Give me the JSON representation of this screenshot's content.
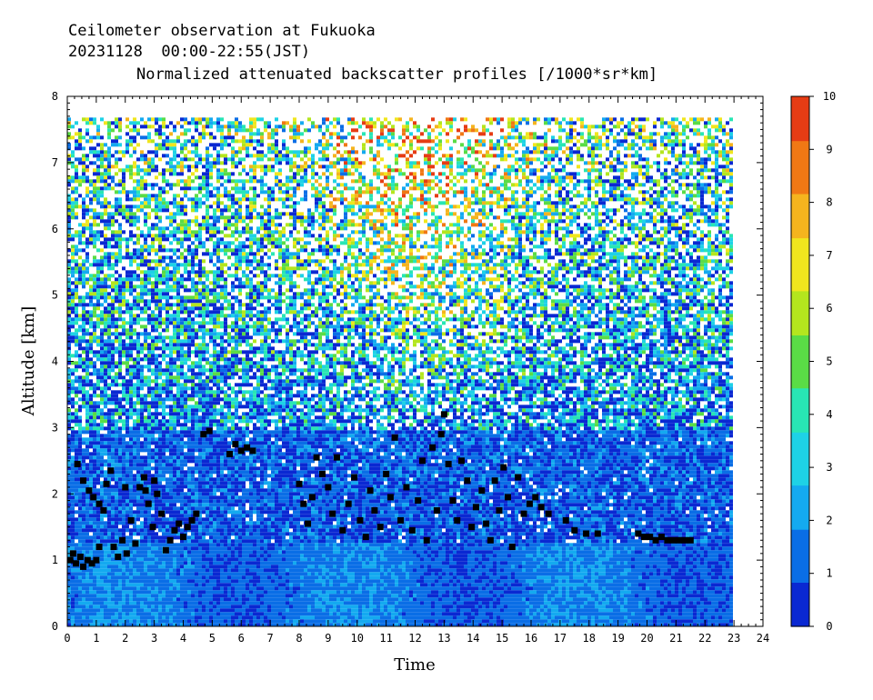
{
  "header": {
    "line1": "Ceilometer observation at Fukuoka",
    "line2": "20231128  00:00-22:55(JST)",
    "line3": "Normalized attenuated backscatter profiles [/1000*sr*km]"
  },
  "chart_data": {
    "type": "heatmap",
    "title": "Normalized attenuated backscatter profiles [/1000*sr*km]",
    "xlabel": "Time",
    "ylabel": "Altitude [km]",
    "xlim": [
      0,
      24
    ],
    "ylim": [
      0,
      8
    ],
    "data_x_range": [
      0,
      22.92
    ],
    "data_y_top": 7.68,
    "x_ticks": [
      "0",
      "1",
      "2",
      "3",
      "4",
      "5",
      "6",
      "7",
      "8",
      "9",
      "10",
      "11",
      "12",
      "13",
      "14",
      "15",
      "16",
      "17",
      "18",
      "19",
      "20",
      "21",
      "22",
      "23",
      "24"
    ],
    "y_ticks": [
      "0",
      "1",
      "2",
      "3",
      "4",
      "5",
      "6",
      "7",
      "8"
    ],
    "colorbar": {
      "min": 0,
      "max": 10,
      "ticks": [
        "0",
        "1",
        "2",
        "3",
        "4",
        "5",
        "6",
        "7",
        "8",
        "9",
        "10"
      ],
      "colors": [
        "#0a28d2",
        "#0a6ee6",
        "#14aaf0",
        "#1ed2e6",
        "#28e6b4",
        "#5adc46",
        "#b4e61e",
        "#f0e61e",
        "#f5b41e",
        "#f07814",
        "#e63c14"
      ]
    },
    "cloud_base_points": [
      [
        0.1,
        1.0
      ],
      [
        0.2,
        1.1
      ],
      [
        0.3,
        0.95
      ],
      [
        0.45,
        1.05
      ],
      [
        0.55,
        0.9
      ],
      [
        0.7,
        1.0
      ],
      [
        0.85,
        0.95
      ],
      [
        1.0,
        1.0
      ],
      [
        1.1,
        1.2
      ],
      [
        0.35,
        2.45
      ],
      [
        0.55,
        2.2
      ],
      [
        0.75,
        2.05
      ],
      [
        0.9,
        1.95
      ],
      [
        1.1,
        1.85
      ],
      [
        1.25,
        1.75
      ],
      [
        1.35,
        2.15
      ],
      [
        1.5,
        2.35
      ],
      [
        1.6,
        1.2
      ],
      [
        1.75,
        1.05
      ],
      [
        1.9,
        1.3
      ],
      [
        2.05,
        1.1
      ],
      [
        2.2,
        1.6
      ],
      [
        2.35,
        1.25
      ],
      [
        2.5,
        2.1
      ],
      [
        2.65,
        2.25
      ],
      [
        2.8,
        1.85
      ],
      [
        2.95,
        1.5
      ],
      [
        3.1,
        2.0
      ],
      [
        3.25,
        1.7
      ],
      [
        3.4,
        1.15
      ],
      [
        3.55,
        1.3
      ],
      [
        3.7,
        1.45
      ],
      [
        3.85,
        1.55
      ],
      [
        4.0,
        1.35
      ],
      [
        4.15,
        1.5
      ],
      [
        4.3,
        1.6
      ],
      [
        4.45,
        1.7
      ],
      [
        2.0,
        2.1
      ],
      [
        2.7,
        2.05
      ],
      [
        3.0,
        2.2
      ],
      [
        4.7,
        2.9
      ],
      [
        4.9,
        2.95
      ],
      [
        5.6,
        2.6
      ],
      [
        5.8,
        2.75
      ],
      [
        6.0,
        2.65
      ],
      [
        6.2,
        2.7
      ],
      [
        6.4,
        2.65
      ],
      [
        8.0,
        2.15
      ],
      [
        8.15,
        1.85
      ],
      [
        8.3,
        1.55
      ],
      [
        8.45,
        1.95
      ],
      [
        8.6,
        2.55
      ],
      [
        8.8,
        2.3
      ],
      [
        9.0,
        2.1
      ],
      [
        9.15,
        1.7
      ],
      [
        9.3,
        2.55
      ],
      [
        9.5,
        1.45
      ],
      [
        9.7,
        1.85
      ],
      [
        9.9,
        2.25
      ],
      [
        10.1,
        1.6
      ],
      [
        10.3,
        1.35
      ],
      [
        10.45,
        2.05
      ],
      [
        10.6,
        1.75
      ],
      [
        10.8,
        1.5
      ],
      [
        11.0,
        2.3
      ],
      [
        11.15,
        1.95
      ],
      [
        11.3,
        2.85
      ],
      [
        11.5,
        1.6
      ],
      [
        11.7,
        2.1
      ],
      [
        11.9,
        1.45
      ],
      [
        12.1,
        1.9
      ],
      [
        12.25,
        2.5
      ],
      [
        12.4,
        1.3
      ],
      [
        12.6,
        2.7
      ],
      [
        12.75,
        1.75
      ],
      [
        12.9,
        2.9
      ],
      [
        13.0,
        3.2
      ],
      [
        13.15,
        2.45
      ],
      [
        13.3,
        1.9
      ],
      [
        13.45,
        1.6
      ],
      [
        13.6,
        2.5
      ],
      [
        13.8,
        2.2
      ],
      [
        13.95,
        1.5
      ],
      [
        14.1,
        1.8
      ],
      [
        14.3,
        2.05
      ],
      [
        14.45,
        1.55
      ],
      [
        14.6,
        1.3
      ],
      [
        14.75,
        2.2
      ],
      [
        14.9,
        1.75
      ],
      [
        15.05,
        2.4
      ],
      [
        15.2,
        1.95
      ],
      [
        15.35,
        1.2
      ],
      [
        15.55,
        2.25
      ],
      [
        15.75,
        1.7
      ],
      [
        15.95,
        1.85
      ],
      [
        16.15,
        1.95
      ],
      [
        16.35,
        1.8
      ],
      [
        16.6,
        1.7
      ],
      [
        17.2,
        1.6
      ],
      [
        17.5,
        1.45
      ],
      [
        17.9,
        1.4
      ],
      [
        18.3,
        1.4
      ],
      [
        19.7,
        1.4
      ],
      [
        19.9,
        1.35
      ],
      [
        20.1,
        1.35
      ],
      [
        20.3,
        1.3
      ],
      [
        20.5,
        1.35
      ],
      [
        20.7,
        1.3
      ],
      [
        20.9,
        1.3
      ],
      [
        21.1,
        1.3
      ],
      [
        21.3,
        1.3
      ],
      [
        21.5,
        1.3
      ]
    ]
  }
}
